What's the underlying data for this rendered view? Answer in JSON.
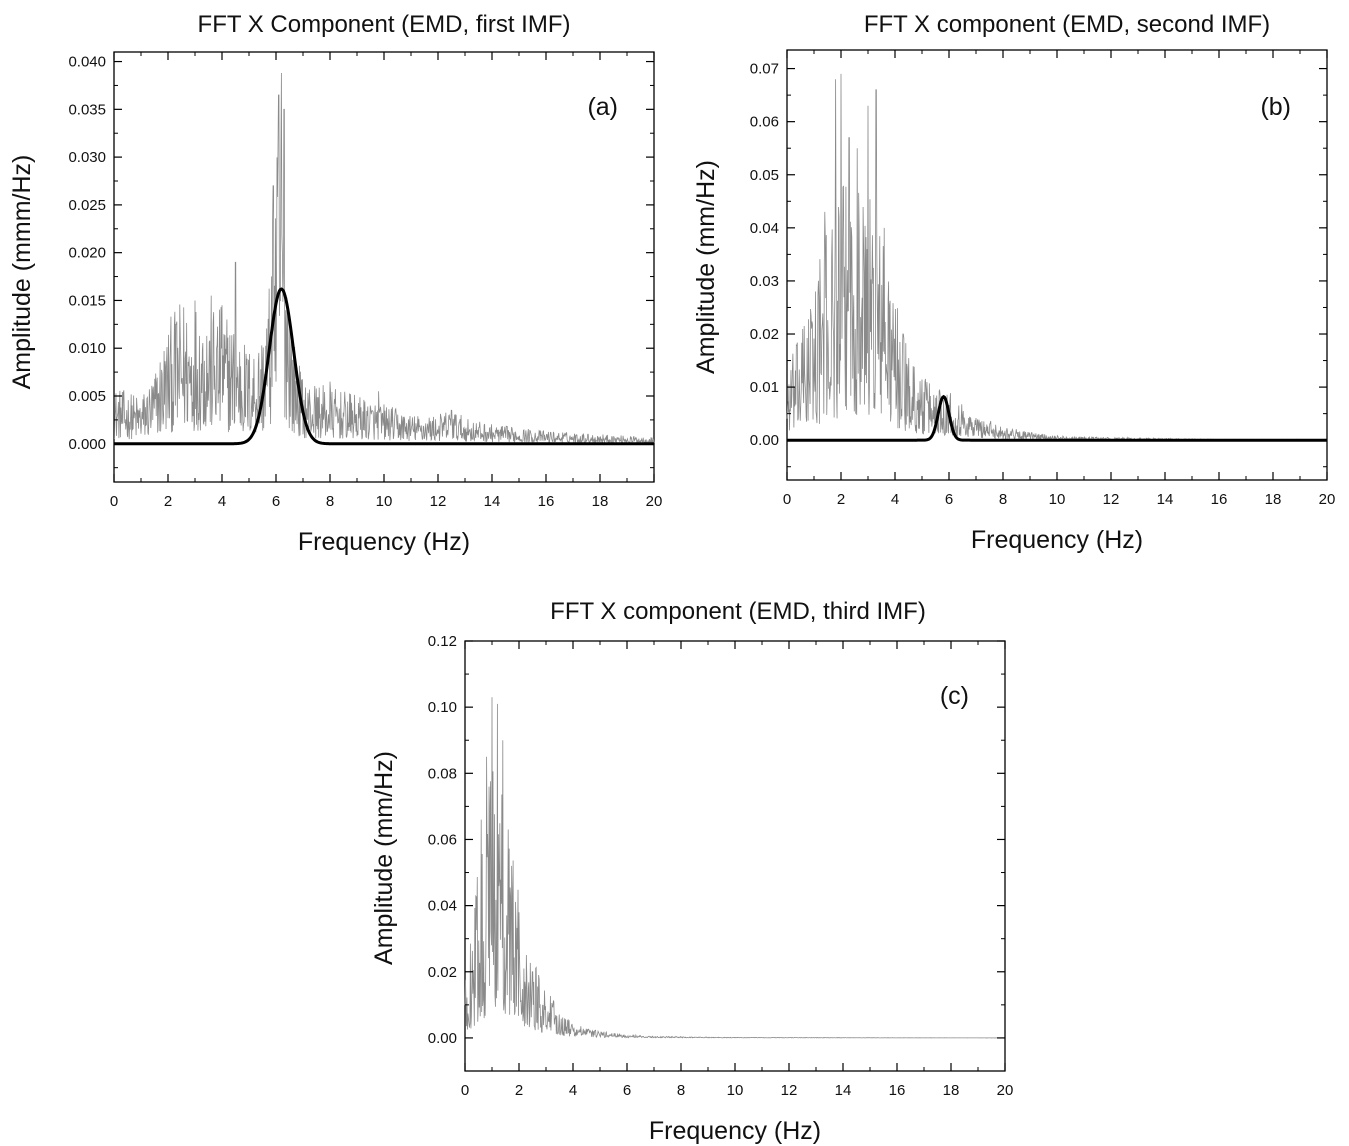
{
  "figure": {
    "colors": {
      "noise_trace": "#8a8a8a",
      "fit_curve": "#000000",
      "axes": "#000000",
      "background": "#ffffff"
    }
  },
  "chart_data": [
    {
      "type": "line",
      "panel": "(a)",
      "title": "FFT X Component (EMD, first IMF)",
      "xlabel": "Frequency (Hz)",
      "ylabel": "Amplitude (mmm/Hz)",
      "xlim": [
        0,
        20
      ],
      "ylim": [
        -0.004,
        0.041
      ],
      "xticks": [
        0,
        2,
        4,
        6,
        8,
        10,
        12,
        14,
        16,
        18,
        20
      ],
      "yticks": [
        0.0,
        0.005,
        0.01,
        0.015,
        0.02,
        0.025,
        0.03,
        0.035,
        0.04
      ],
      "ytick_labels": [
        "0.000",
        "0.005",
        "0.010",
        "0.015",
        "0.020",
        "0.025",
        "0.030",
        "0.035",
        "0.040"
      ],
      "grid": false,
      "series": [
        {
          "style": "noisy-spectrum",
          "color": "#8a8a8a",
          "envelope_x": [
            0,
            1,
            1.5,
            2,
            2.5,
            3,
            3.5,
            4,
            4.5,
            5,
            5.5,
            5.8,
            6.0,
            6.2,
            6.4,
            6.6,
            7,
            8,
            9,
            10,
            11,
            12,
            12.5,
            13,
            14,
            16,
            18,
            20
          ],
          "envelope_y": [
            0.0035,
            0.003,
            0.0045,
            0.0075,
            0.009,
            0.009,
            0.009,
            0.0085,
            0.0075,
            0.006,
            0.007,
            0.011,
            0.018,
            0.022,
            0.014,
            0.007,
            0.004,
            0.0035,
            0.003,
            0.0025,
            0.0018,
            0.0018,
            0.0022,
            0.0016,
            0.0012,
            0.0008,
            0.0006,
            0.0004
          ],
          "peaks": [
            [
              2.3,
              0.0125
            ],
            [
              3.0,
              0.015
            ],
            [
              3.6,
              0.0155
            ],
            [
              4.0,
              0.0145
            ],
            [
              4.5,
              0.019
            ],
            [
              5.9,
              0.027
            ],
            [
              6.1,
              0.0365
            ],
            [
              6.2,
              0.0388
            ],
            [
              6.3,
              0.035
            ],
            [
              8.0,
              0.0065
            ],
            [
              9.8,
              0.0055
            ],
            [
              12.5,
              0.0035
            ]
          ]
        },
        {
          "style": "gaussian-fit",
          "color": "#000000",
          "center": 6.2,
          "sigma": 0.45,
          "amplitude": 0.0162
        }
      ]
    },
    {
      "type": "line",
      "panel": "(b)",
      "title": "FFT X component (EMD, second IMF)",
      "xlabel": "Frequency (Hz)",
      "ylabel": "Amplitude (mm/Hz)",
      "xlim": [
        0,
        20
      ],
      "ylim": [
        -0.0075,
        0.0735
      ],
      "xticks": [
        0,
        2,
        4,
        6,
        8,
        10,
        12,
        14,
        16,
        18,
        20
      ],
      "yticks": [
        0.0,
        0.01,
        0.02,
        0.03,
        0.04,
        0.05,
        0.06,
        0.07
      ],
      "ytick_labels": [
        "0.00",
        "0.01",
        "0.02",
        "0.03",
        "0.04",
        "0.05",
        "0.06",
        "0.07"
      ],
      "grid": false,
      "series": [
        {
          "style": "noisy-spectrum",
          "color": "#8a8a8a",
          "envelope_x": [
            0,
            0.5,
            1,
            1.5,
            2,
            2.5,
            3,
            3.5,
            4,
            4.5,
            5,
            5.5,
            6,
            6.5,
            7,
            8,
            9,
            10,
            12,
            14,
            16,
            20
          ],
          "envelope_y": [
            0.008,
            0.012,
            0.018,
            0.024,
            0.028,
            0.03,
            0.028,
            0.024,
            0.016,
            0.01,
            0.007,
            0.0065,
            0.006,
            0.004,
            0.0028,
            0.0016,
            0.0009,
            0.0005,
            0.0003,
            0.0002,
            0.0001,
            0.0001
          ],
          "peaks": [
            [
              1.4,
              0.043
            ],
            [
              1.8,
              0.068
            ],
            [
              2.0,
              0.069
            ],
            [
              2.3,
              0.057
            ],
            [
              2.6,
              0.055
            ],
            [
              3.0,
              0.063
            ],
            [
              3.3,
              0.066
            ],
            [
              3.6,
              0.04
            ],
            [
              4.3,
              0.02
            ]
          ]
        },
        {
          "style": "gaussian-fit",
          "color": "#000000",
          "center": 5.8,
          "sigma": 0.2,
          "amplitude": 0.0082
        }
      ]
    },
    {
      "type": "line",
      "panel": "(c)",
      "title": "FFT X component (EMD, third IMF)",
      "xlabel": "Frequency (Hz)",
      "ylabel": "Amplitude (mm/Hz)",
      "xlim": [
        0,
        20
      ],
      "ylim": [
        -0.01,
        0.12
      ],
      "xticks": [
        0,
        2,
        4,
        6,
        8,
        10,
        12,
        14,
        16,
        18,
        20
      ],
      "yticks": [
        0.0,
        0.02,
        0.04,
        0.06,
        0.08,
        0.1,
        0.12
      ],
      "ytick_labels": [
        "0.00",
        "0.02",
        "0.04",
        "0.06",
        "0.08",
        "0.10",
        "0.12"
      ],
      "grid": false,
      "series": [
        {
          "style": "noisy-spectrum",
          "color": "#8a8a8a",
          "envelope_x": [
            0,
            0.3,
            0.6,
            1.0,
            1.3,
            1.6,
            2.0,
            2.5,
            3.0,
            3.5,
            4,
            5,
            6,
            7,
            10,
            20
          ],
          "envelope_y": [
            0.01,
            0.022,
            0.035,
            0.05,
            0.048,
            0.04,
            0.025,
            0.016,
            0.009,
            0.005,
            0.0025,
            0.0012,
            0.0006,
            0.0003,
            0.0001,
            0.0
          ],
          "peaks": [
            [
              0.6,
              0.066
            ],
            [
              0.8,
              0.085
            ],
            [
              1.0,
              0.103
            ],
            [
              1.2,
              0.101
            ],
            [
              1.4,
              0.09
            ],
            [
              1.6,
              0.063
            ],
            [
              2.0,
              0.038
            ],
            [
              2.5,
              0.02
            ]
          ]
        }
      ]
    }
  ]
}
